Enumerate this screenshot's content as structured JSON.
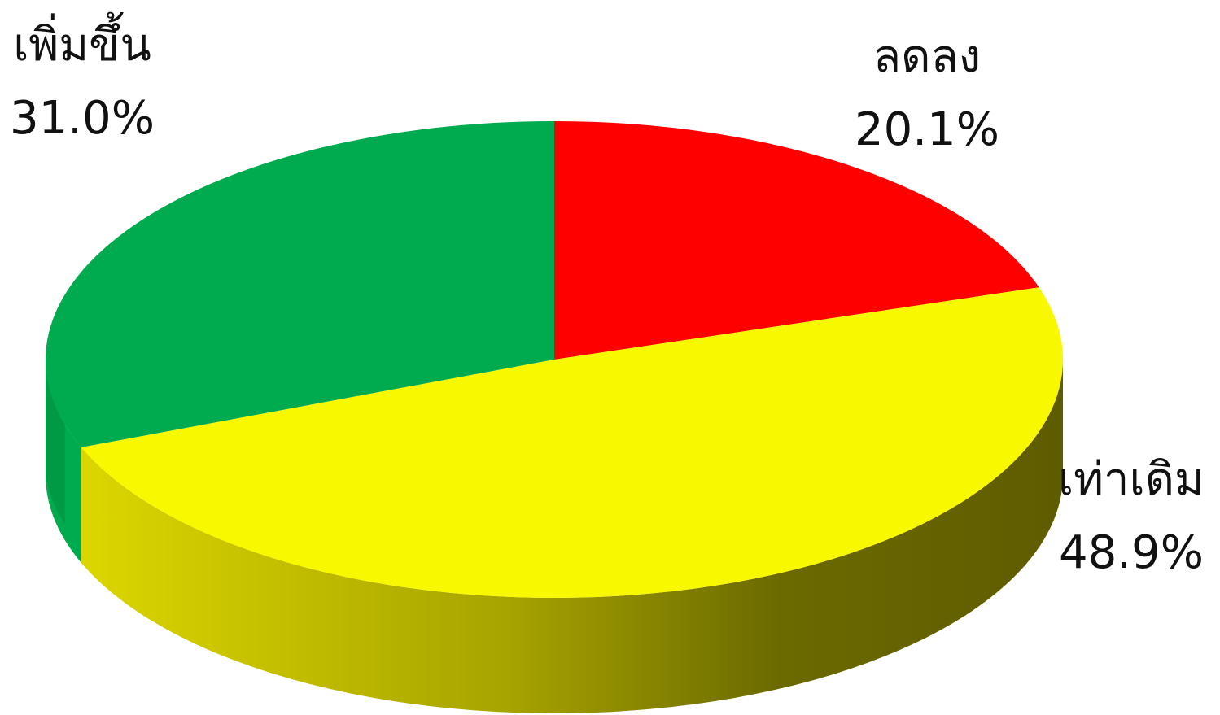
{
  "chart_data": {
    "type": "pie",
    "three_d": true,
    "title": "",
    "legend": "none",
    "slices": [
      {
        "label": "ลดลง",
        "value": 20.1,
        "value_label": "20.1%",
        "color": "#FF0000"
      },
      {
        "label": "เท่าเดิม",
        "value": 48.9,
        "value_label": "48.9%",
        "color": "#F8F800"
      },
      {
        "label": "เพิ่มขึ้น",
        "value": 31.0,
        "value_label": "31.0%",
        "color": "#00AA4E"
      }
    ]
  }
}
